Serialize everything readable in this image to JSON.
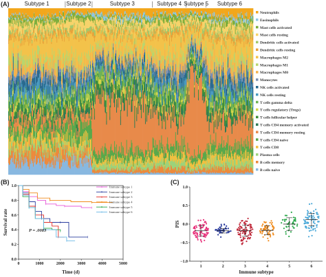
{
  "panels": {
    "a_label": "(A)",
    "b_label": "(B)",
    "c_label": "(C)"
  },
  "chart_data": [
    {
      "type": "bar",
      "subtype": "stacked-100",
      "panel": "A",
      "subtypes": [
        {
          "label": "Subtype 1",
          "samples": 85
        },
        {
          "label": "Subtype 2",
          "samples": 40
        },
        {
          "label": "Subtype 3",
          "samples": 90
        },
        {
          "label": "Subtype 4",
          "samples": 50
        },
        {
          "label": "Subtype 5",
          "samples": 30
        },
        {
          "label": "Subtype 6",
          "samples": 70
        }
      ],
      "cell_types": [
        {
          "name": "Neutrophils",
          "color": "#f2a71c"
        },
        {
          "name": "Eosinophils",
          "color": "#8cc7e6"
        },
        {
          "name": "Mast cells activated",
          "color": "#7fae3c"
        },
        {
          "name": "Mast cells resting",
          "color": "#f6d36a"
        },
        {
          "name": "Dendritic cells activated",
          "color": "#a3c86a"
        },
        {
          "name": "Dendritic cells resting",
          "color": "#e8a23a"
        },
        {
          "name": "Macrophages M2",
          "color": "#f3c24a"
        },
        {
          "name": "Macrophages M1",
          "color": "#b9d56e"
        },
        {
          "name": "Macrophages M0",
          "color": "#f5b24d"
        },
        {
          "name": "Monocytes",
          "color": "#7b8fb2"
        },
        {
          "name": "NK cells activated",
          "color": "#2b6a8e"
        },
        {
          "name": "NK cells resting",
          "color": "#4a9abf"
        },
        {
          "name": "T cells gamma delta",
          "color": "#6fb254"
        },
        {
          "name": "T cells regulatory (Tregs)",
          "color": "#d4d64a"
        },
        {
          "name": "T cells follicular helper",
          "color": "#3f8f3a"
        },
        {
          "name": "T cells CD4 memory activated",
          "color": "#2d7a55"
        },
        {
          "name": "T cells CD4 memory resting",
          "color": "#e88a4a"
        },
        {
          "name": "T cells CD4 naive",
          "color": "#5aa84a"
        },
        {
          "name": "T cells CD8",
          "color": "#f0c040"
        },
        {
          "name": "Plasma cells",
          "color": "#9dd27a"
        },
        {
          "name": "B cells memory",
          "color": "#ec8a3c"
        },
        {
          "name": "B cells naive",
          "color": "#88b8e0"
        }
      ],
      "mean_fractions": {
        "Subtype 1": [
          0.05,
          0.01,
          0.03,
          0.05,
          0.02,
          0.03,
          0.12,
          0.05,
          0.06,
          0.03,
          0.06,
          0.05,
          0.04,
          0.03,
          0.04,
          0.03,
          0.06,
          0.06,
          0.05,
          0.04,
          0.07,
          0.08
        ],
        "Subtype 2": [
          0.03,
          0.01,
          0.03,
          0.06,
          0.02,
          0.02,
          0.15,
          0.04,
          0.05,
          0.03,
          0.04,
          0.04,
          0.05,
          0.03,
          0.04,
          0.03,
          0.06,
          0.1,
          0.05,
          0.04,
          0.05,
          0.08
        ],
        "Subtype 3": [
          0.04,
          0.02,
          0.02,
          0.04,
          0.02,
          0.02,
          0.08,
          0.03,
          0.05,
          0.02,
          0.04,
          0.03,
          0.05,
          0.03,
          0.05,
          0.03,
          0.3,
          0.05,
          0.03,
          0.03,
          0.02,
          0.01
        ],
        "Subtype 4": [
          0.04,
          0.01,
          0.03,
          0.04,
          0.02,
          0.03,
          0.12,
          0.04,
          0.06,
          0.03,
          0.05,
          0.04,
          0.05,
          0.03,
          0.05,
          0.03,
          0.18,
          0.06,
          0.04,
          0.04,
          0.03,
          0.01
        ],
        "Subtype 5": [
          0.03,
          0.01,
          0.02,
          0.03,
          0.02,
          0.02,
          0.05,
          0.03,
          0.04,
          0.02,
          0.03,
          0.03,
          0.04,
          0.02,
          0.03,
          0.02,
          0.45,
          0.04,
          0.03,
          0.02,
          0.02,
          0.01
        ],
        "Subtype 6": [
          0.05,
          0.02,
          0.03,
          0.05,
          0.02,
          0.03,
          0.1,
          0.04,
          0.06,
          0.03,
          0.05,
          0.04,
          0.05,
          0.03,
          0.04,
          0.03,
          0.15,
          0.06,
          0.04,
          0.04,
          0.03,
          0.01
        ]
      }
    },
    {
      "type": "line",
      "subtype": "kaplan-meier",
      "panel": "B",
      "ylabel": "Survival rate",
      "xlabel": "Time (d)",
      "xlim": [
        0,
        5000
      ],
      "ylim": [
        0.0,
        1.0
      ],
      "xticks": [
        "0",
        "1000",
        "2000",
        "3000",
        "4000",
        "5000"
      ],
      "yticks": [
        "0.0",
        "0.2",
        "0.4",
        "0.6",
        "0.8",
        "1.0"
      ],
      "annotation": "P = .0083",
      "series": [
        {
          "name": "Immune subtype 1",
          "color": "#e85ad8",
          "points": [
            [
              0,
              1
            ],
            [
              200,
              0.92
            ],
            [
              500,
              0.85
            ],
            [
              900,
              0.8
            ],
            [
              1300,
              0.75
            ],
            [
              1800,
              0.73
            ],
            [
              2200,
              0.72
            ],
            [
              3000,
              0.7
            ],
            [
              3500,
              0.7
            ]
          ]
        },
        {
          "name": "Immune subtype 2",
          "color": "#2a3c9e",
          "points": [
            [
              0,
              1
            ],
            [
              200,
              0.9
            ],
            [
              500,
              0.78
            ],
            [
              800,
              0.65
            ],
            [
              1100,
              0.55
            ],
            [
              1500,
              0.5
            ],
            [
              2000,
              0.5
            ],
            [
              2400,
              0.3
            ],
            [
              3300,
              0.3
            ]
          ]
        },
        {
          "name": "Immune subtype 3",
          "color": "#e2302a",
          "points": [
            [
              0,
              1
            ],
            [
              200,
              0.88
            ],
            [
              500,
              0.72
            ],
            [
              800,
              0.6
            ],
            [
              1200,
              0.5
            ],
            [
              1600,
              0.45
            ],
            [
              1900,
              0.3
            ],
            [
              2200,
              0.3
            ]
          ]
        },
        {
          "name": "Immune subtype 4",
          "color": "#f08a1a",
          "points": [
            [
              0,
              1
            ],
            [
              200,
              0.95
            ],
            [
              500,
              0.9
            ],
            [
              900,
              0.83
            ],
            [
              1500,
              0.8
            ],
            [
              2500,
              0.78
            ],
            [
              3500,
              0.77
            ],
            [
              4500,
              0.77
            ]
          ]
        },
        {
          "name": "Immune subtype 5",
          "color": "#2aa84a",
          "points": [
            [
              0,
              1
            ],
            [
              200,
              0.85
            ],
            [
              500,
              0.7
            ],
            [
              800,
              0.55
            ],
            [
              1200,
              0.42
            ],
            [
              1600,
              0.4
            ],
            [
              2000,
              0.38
            ]
          ]
        },
        {
          "name": "Immune subtype 6",
          "color": "#6ab8e6",
          "points": [
            [
              0,
              1
            ],
            [
              200,
              0.87
            ],
            [
              500,
              0.7
            ],
            [
              800,
              0.55
            ],
            [
              1200,
              0.4
            ],
            [
              1800,
              0.3
            ],
            [
              2300,
              0.25
            ],
            [
              2700,
              0.25
            ]
          ]
        }
      ]
    },
    {
      "type": "scatter",
      "subtype": "dot-plot",
      "panel": "C",
      "ylabel": "PIS",
      "xlabel": "Immune subtype",
      "ylim": [
        -1.0,
        1.0
      ],
      "yticks": [
        "1.0",
        "0.5",
        "0.0",
        "−0.5",
        "−1.0"
      ],
      "categories": [
        "1",
        "2",
        "3",
        "4",
        "5",
        "6"
      ],
      "colors": [
        "#e8307a",
        "#2a3c9e",
        "#c0283a",
        "#f08a1a",
        "#2aa84a",
        "#4aa8d8"
      ],
      "groups": [
        {
          "category": "1",
          "mean": -0.18,
          "sd": 0.14,
          "n": 80,
          "min": -0.6,
          "max": 0.3
        },
        {
          "category": "2",
          "mean": -0.18,
          "sd": 0.06,
          "n": 45,
          "min": -0.35,
          "max": 0.02
        },
        {
          "category": "3",
          "mean": -0.18,
          "sd": 0.15,
          "n": 90,
          "min": -0.62,
          "max": 0.15
        },
        {
          "category": "4",
          "mean": -0.17,
          "sd": 0.12,
          "n": 60,
          "min": -0.55,
          "max": 0.15
        },
        {
          "category": "5",
          "mean": 0.0,
          "sd": 0.17,
          "n": 40,
          "min": -0.4,
          "max": 0.5
        },
        {
          "category": "6",
          "mean": 0.12,
          "sd": 0.17,
          "n": 80,
          "min": -0.4,
          "max": 0.55
        }
      ]
    }
  ]
}
